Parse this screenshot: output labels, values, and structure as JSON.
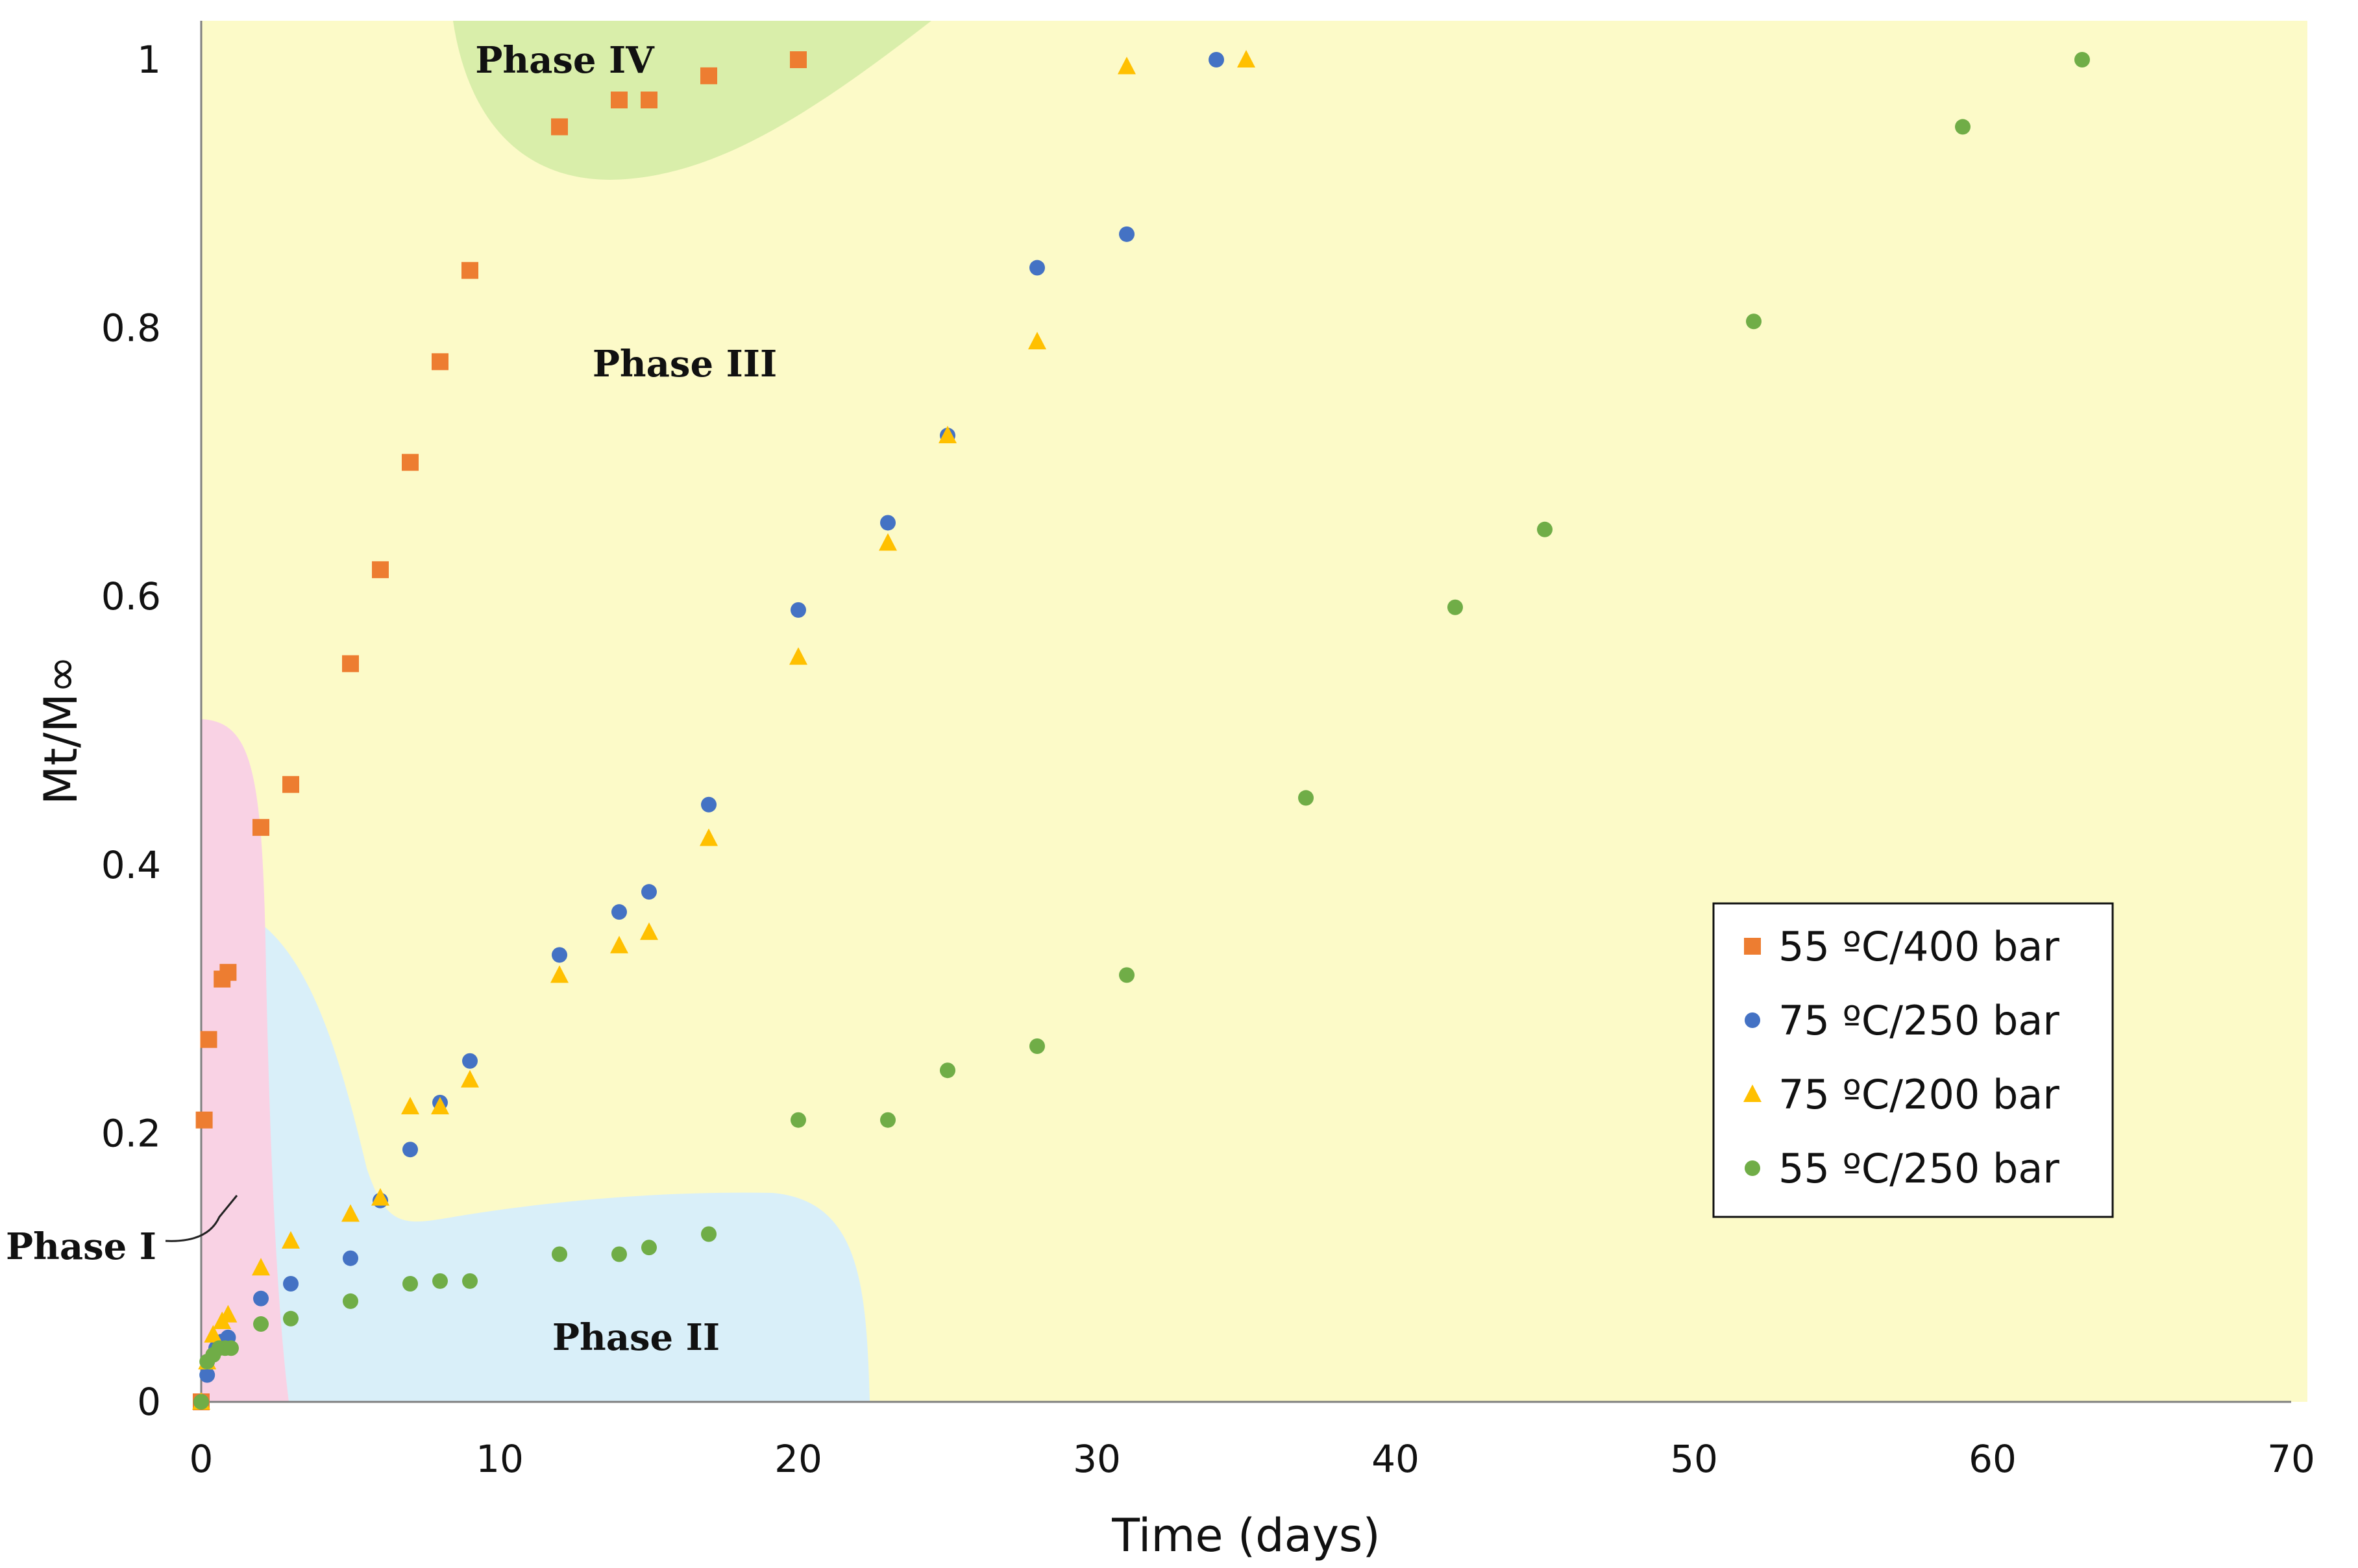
{
  "chart_data": {
    "type": "scatter",
    "xlabel": "Time (days)",
    "ylabel": "Mt/M∞",
    "xlim": [
      0,
      70
    ],
    "ylim": [
      0,
      1
    ],
    "x_ticks": [
      "0",
      "10",
      "20",
      "30",
      "40",
      "50",
      "60",
      "70"
    ],
    "y_ticks": [
      "0",
      "0.2",
      "0.4",
      "0.6",
      "0.8",
      "1"
    ],
    "grid": false,
    "legend_position": "right",
    "phases": [
      {
        "name": "Phase I",
        "color": "#f9d2e4"
      },
      {
        "name": "Phase II",
        "color": "#d9eff9"
      },
      {
        "name": "Phase III",
        "color": "#fcfac8"
      },
      {
        "name": "Phase IV",
        "color": "#d9eeaa"
      }
    ],
    "series": [
      {
        "name": "55 ºC/400 bar",
        "marker": "square",
        "color": "#ed7d31",
        "points": [
          [
            0,
            0
          ],
          [
            0.1,
            0.21
          ],
          [
            0.25,
            0.27
          ],
          [
            0.7,
            0.315
          ],
          [
            0.9,
            0.32
          ],
          [
            2,
            0.428
          ],
          [
            3,
            0.46
          ],
          [
            5,
            0.55
          ],
          [
            6,
            0.62
          ],
          [
            7,
            0.7
          ],
          [
            8,
            0.775
          ],
          [
            9,
            0.843
          ],
          [
            12,
            0.95
          ],
          [
            14,
            0.97
          ],
          [
            15,
            0.97
          ],
          [
            17,
            0.988
          ],
          [
            20,
            1.0
          ]
        ]
      },
      {
        "name": "75 ºC/250 bar",
        "marker": "circle",
        "color": "#4472c4",
        "points": [
          [
            0,
            0
          ],
          [
            0.2,
            0.02
          ],
          [
            0.5,
            0.04
          ],
          [
            0.7,
            0.045
          ],
          [
            0.9,
            0.048
          ],
          [
            2,
            0.077
          ],
          [
            3,
            0.088
          ],
          [
            5,
            0.107
          ],
          [
            6,
            0.15
          ],
          [
            7,
            0.188
          ],
          [
            8,
            0.223
          ],
          [
            9,
            0.254
          ],
          [
            12,
            0.333
          ],
          [
            14,
            0.365
          ],
          [
            15,
            0.38
          ],
          [
            17,
            0.445
          ],
          [
            20,
            0.59
          ],
          [
            23,
            0.655
          ],
          [
            25,
            0.72
          ],
          [
            28,
            0.845
          ],
          [
            31,
            0.87
          ],
          [
            34,
            1.0
          ]
        ]
      },
      {
        "name": "75 ºC/200 bar",
        "marker": "triangle",
        "color": "#ffc000",
        "points": [
          [
            0,
            0
          ],
          [
            0.2,
            0.03
          ],
          [
            0.4,
            0.05
          ],
          [
            0.7,
            0.06
          ],
          [
            0.9,
            0.065
          ],
          [
            2,
            0.1
          ],
          [
            3,
            0.12
          ],
          [
            5,
            0.14
          ],
          [
            6,
            0.152
          ],
          [
            7,
            0.22
          ],
          [
            8,
            0.22
          ],
          [
            9,
            0.24
          ],
          [
            12,
            0.318
          ],
          [
            14,
            0.34
          ],
          [
            15,
            0.35
          ],
          [
            17,
            0.42
          ],
          [
            20,
            0.555
          ],
          [
            23,
            0.64
          ],
          [
            25,
            0.72
          ],
          [
            28,
            0.79
          ],
          [
            31,
            0.995
          ],
          [
            35,
            1.0
          ]
        ]
      },
      {
        "name": "55 ºC/250 bar",
        "marker": "circle",
        "color": "#70ad47",
        "points": [
          [
            0,
            0
          ],
          [
            0.2,
            0.03
          ],
          [
            0.4,
            0.035
          ],
          [
            0.6,
            0.04
          ],
          [
            0.8,
            0.04
          ],
          [
            1,
            0.04
          ],
          [
            2,
            0.058
          ],
          [
            3,
            0.062
          ],
          [
            5,
            0.075
          ],
          [
            7,
            0.088
          ],
          [
            8,
            0.09
          ],
          [
            9,
            0.09
          ],
          [
            12,
            0.11
          ],
          [
            14,
            0.11
          ],
          [
            15,
            0.115
          ],
          [
            17,
            0.125
          ],
          [
            20,
            0.21
          ],
          [
            23,
            0.21
          ],
          [
            25,
            0.247
          ],
          [
            28,
            0.265
          ],
          [
            31,
            0.318
          ],
          [
            37,
            0.45
          ],
          [
            42,
            0.592
          ],
          [
            45,
            0.65
          ],
          [
            52,
            0.805
          ],
          [
            59,
            0.95
          ],
          [
            63,
            1.0
          ]
        ]
      }
    ]
  }
}
